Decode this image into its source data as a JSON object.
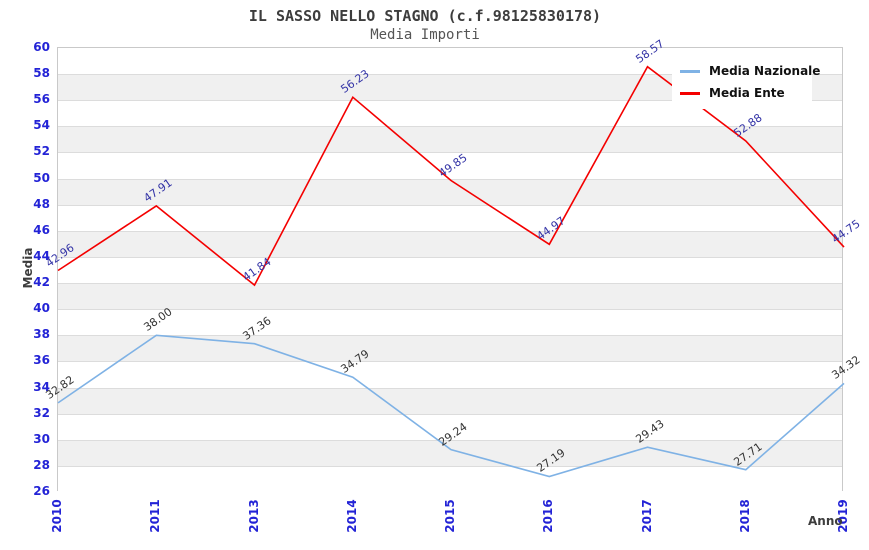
{
  "chart_data": {
    "type": "line",
    "title": "IL SASSO NELLO STAGNO (c.f.98125830178)",
    "subtitle": "Media Importi",
    "xlabel": "Anno",
    "ylabel": "Media",
    "categories": [
      "2010",
      "2011",
      "2013",
      "2014",
      "2015",
      "2016",
      "2017",
      "2018",
      "2019"
    ],
    "ylim": [
      26,
      60
    ],
    "ytick_step": 2,
    "grid": "horizontal-bands-alternating",
    "legend_position": "top-right",
    "series": [
      {
        "name": "Media Nazionale",
        "color": "#7fb2e5",
        "label_color": "#333333",
        "values": [
          32.82,
          38.0,
          37.36,
          34.79,
          29.24,
          27.19,
          29.43,
          27.71,
          34.32
        ],
        "labels": [
          "32.82",
          "38.00",
          "37.36",
          "34.79",
          "29.24",
          "27.19",
          "29.43",
          "27.71",
          "34.32"
        ]
      },
      {
        "name": "Media Ente",
        "color": "#f40000",
        "label_color": "#3333a6",
        "values": [
          42.96,
          47.91,
          41.84,
          56.23,
          49.85,
          44.97,
          58.57,
          52.88,
          44.75
        ],
        "labels": [
          "42.96",
          "47.91",
          "41.84",
          "56.23",
          "49.85",
          "44.97",
          "58.57",
          "52.88",
          "44.75"
        ]
      }
    ],
    "colors": {
      "tick_label": "#2323d6",
      "band_gray": "#f0f0f0",
      "band_white": "#ffffff",
      "gridline": "#dcdcdc",
      "plot_border": "#c9c9c9",
      "title_text": "#3d3d3d",
      "subtitle_text": "#555555",
      "legend_text": "#111111"
    }
  }
}
